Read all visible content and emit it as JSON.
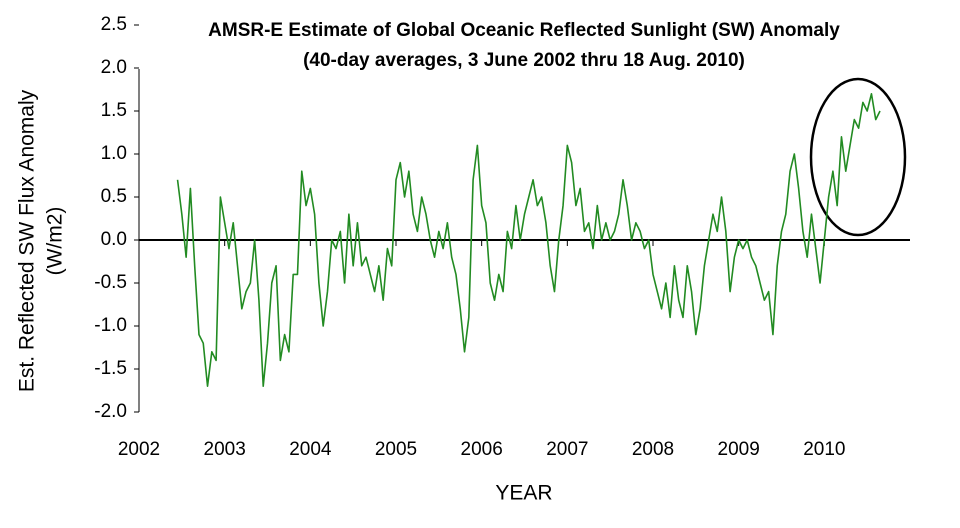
{
  "chart_data": {
    "type": "line",
    "title": "AMSR-E Estimate of Global Oceanic Reflected Sunlight (SW) Anomaly",
    "subtitle": "(40-day averages, 3 June 2002 thru 18 Aug. 2010)",
    "x_label": "YEAR",
    "y_label": [
      "Est. Reflected SW Flux Anomaly",
      "(W/m2)"
    ],
    "xlim": [
      2002,
      2011
    ],
    "xticks": [
      2002,
      2003,
      2004,
      2005,
      2006,
      2007,
      2008,
      2009,
      2010
    ],
    "ylim": [
      -2,
      2.5
    ],
    "yticks": [
      {
        "value": -2,
        "label": "-2.0"
      },
      -1.5,
      {
        "value": -1,
        "label": "-1.0"
      },
      -0.5,
      {
        "value": 0,
        "label": "0.0"
      },
      0.5,
      {
        "value": 1,
        "label": "1.0"
      },
      1.5,
      {
        "value": 2,
        "label": "2.0"
      },
      2.5
    ],
    "grid": false,
    "x": [
      2002.45,
      2002.5,
      2002.55,
      2002.6,
      2002.65,
      2002.7,
      2002.75,
      2002.8,
      2002.85,
      2002.9,
      2002.95,
      2003,
      2003.05,
      2003.1,
      2003.15,
      2003.2,
      2003.25,
      2003.3,
      2003.35,
      2003.4,
      2003.45,
      2003.5,
      2003.55,
      2003.6,
      2003.65,
      2003.7,
      2003.75,
      2003.8,
      2003.85,
      2003.9,
      2003.95,
      2004,
      2004.05,
      2004.1,
      2004.15,
      2004.2,
      2004.25,
      2004.3,
      2004.35,
      2004.4,
      2004.45,
      2004.5,
      2004.55,
      2004.6,
      2004.65,
      2004.7,
      2004.75,
      2004.8,
      2004.85,
      2004.9,
      2004.95,
      2005,
      2005.05,
      2005.1,
      2005.15,
      2005.2,
      2005.25,
      2005.3,
      2005.35,
      2005.4,
      2005.45,
      2005.5,
      2005.55,
      2005.6,
      2005.65,
      2005.7,
      2005.75,
      2005.8,
      2005.85,
      2005.9,
      2005.95,
      2006,
      2006.05,
      2006.1,
      2006.15,
      2006.2,
      2006.25,
      2006.3,
      2006.35,
      2006.4,
      2006.45,
      2006.5,
      2006.55,
      2006.6,
      2006.65,
      2006.7,
      2006.75,
      2006.8,
      2006.85,
      2006.9,
      2006.95,
      2007,
      2007.05,
      2007.1,
      2007.15,
      2007.2,
      2007.25,
      2007.3,
      2007.35,
      2007.4,
      2007.45,
      2007.5,
      2007.55,
      2007.6,
      2007.65,
      2007.7,
      2007.75,
      2007.8,
      2007.85,
      2007.9,
      2007.95,
      2008,
      2008.05,
      2008.1,
      2008.15,
      2008.2,
      2008.25,
      2008.3,
      2008.35,
      2008.4,
      2008.45,
      2008.5,
      2008.55,
      2008.6,
      2008.65,
      2008.7,
      2008.75,
      2008.8,
      2008.85,
      2008.9,
      2008.95,
      2009,
      2009.05,
      2009.1,
      2009.15,
      2009.2,
      2009.25,
      2009.3,
      2009.35,
      2009.4,
      2009.45,
      2009.5,
      2009.55,
      2009.6,
      2009.65,
      2009.7,
      2009.75,
      2009.8,
      2009.85,
      2009.9,
      2009.95,
      2010,
      2010.05,
      2010.1,
      2010.15,
      2010.2,
      2010.25,
      2010.3,
      2010.35,
      2010.4,
      2010.45,
      2010.5,
      2010.55,
      2010.6,
      2010.65
    ],
    "series": [
      {
        "color": "#228b22",
        "values": [
          0.7,
          0.3,
          -0.2,
          0.6,
          -0.3,
          -1.1,
          -1.2,
          -1.7,
          -1.3,
          -1.4,
          0.5,
          0.2,
          -0.1,
          0.2,
          -0.3,
          -0.8,
          -0.6,
          -0.5,
          0.0,
          -0.7,
          -1.7,
          -1.2,
          -0.5,
          -0.3,
          -1.4,
          -1.1,
          -1.3,
          -0.4,
          -0.4,
          0.8,
          0.4,
          0.6,
          0.3,
          -0.5,
          -1.0,
          -0.6,
          0.0,
          -0.1,
          0.1,
          -0.5,
          0.3,
          -0.3,
          0.2,
          -0.3,
          -0.2,
          -0.4,
          -0.6,
          -0.3,
          -0.7,
          -0.1,
          -0.3,
          0.7,
          0.9,
          0.5,
          0.8,
          0.3,
          0.1,
          0.5,
          0.3,
          0.0,
          -0.2,
          0.1,
          -0.1,
          0.2,
          -0.2,
          -0.4,
          -0.8,
          -1.3,
          -0.9,
          0.7,
          1.1,
          0.4,
          0.2,
          -0.5,
          -0.7,
          -0.4,
          -0.6,
          0.1,
          -0.1,
          0.4,
          0.0,
          0.3,
          0.5,
          0.7,
          0.4,
          0.5,
          0.2,
          -0.3,
          -0.6,
          0.0,
          0.4,
          1.1,
          0.9,
          0.4,
          0.6,
          0.1,
          0.2,
          -0.1,
          0.4,
          0.0,
          0.2,
          0.0,
          0.1,
          0.3,
          0.7,
          0.4,
          0.0,
          0.2,
          0.1,
          -0.1,
          0.0,
          -0.4,
          -0.6,
          -0.8,
          -0.5,
          -0.9,
          -0.3,
          -0.7,
          -0.9,
          -0.3,
          -0.6,
          -1.1,
          -0.8,
          -0.3,
          0.0,
          0.3,
          0.1,
          0.5,
          0.1,
          -0.6,
          -0.2,
          0.0,
          -0.1,
          0.0,
          -0.2,
          -0.3,
          -0.5,
          -0.7,
          -0.6,
          -1.1,
          -0.3,
          0.1,
          0.3,
          0.8,
          1.0,
          0.6,
          0.1,
          -0.2,
          0.3,
          -0.1,
          -0.5,
          0.0,
          0.5,
          0.8,
          0.4,
          1.2,
          0.8,
          1.1,
          1.4,
          1.3,
          1.6,
          1.5,
          1.7,
          1.4,
          1.5
        ]
      }
    ]
  }
}
